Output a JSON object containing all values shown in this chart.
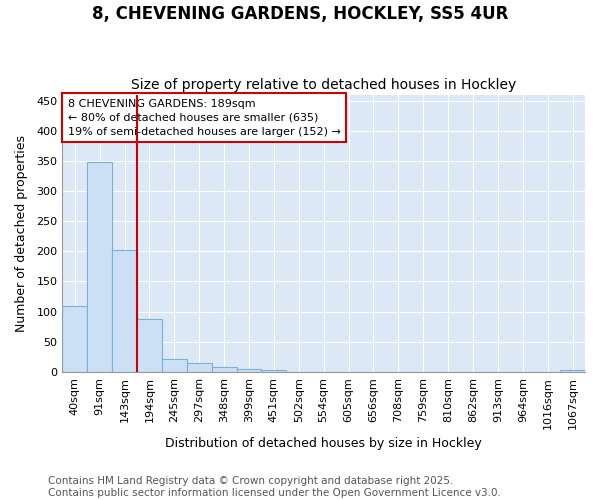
{
  "title_line1": "8, CHEVENING GARDENS, HOCKLEY, SS5 4UR",
  "title_line2": "Size of property relative to detached houses in Hockley",
  "xlabel": "Distribution of detached houses by size in Hockley",
  "ylabel": "Number of detached properties",
  "categories": [
    "40sqm",
    "91sqm",
    "143sqm",
    "194sqm",
    "245sqm",
    "297sqm",
    "348sqm",
    "399sqm",
    "451sqm",
    "502sqm",
    "554sqm",
    "605sqm",
    "656sqm",
    "708sqm",
    "759sqm",
    "810sqm",
    "862sqm",
    "913sqm",
    "964sqm",
    "1016sqm",
    "1067sqm"
  ],
  "values": [
    109,
    348,
    202,
    88,
    22,
    15,
    8,
    5,
    3,
    0,
    0,
    0,
    0,
    0,
    0,
    0,
    0,
    0,
    0,
    0,
    3
  ],
  "bar_color": "#cce0f5",
  "bar_edge_color": "#7ab0d4",
  "marker_color": "#cc0000",
  "annotation_line1": "8 CHEVENING GARDENS: 189sqm",
  "annotation_line2": "← 80% of detached houses are smaller (635)",
  "annotation_line3": "19% of semi-detached houses are larger (152) →",
  "annotation_box_color": "#cc0000",
  "ylim": [
    0,
    460
  ],
  "yticks": [
    0,
    50,
    100,
    150,
    200,
    250,
    300,
    350,
    400,
    450
  ],
  "fig_bg_color": "#ffffff",
  "plot_bg_color": "#dce8f5",
  "grid_color": "#ffffff",
  "title_fontsize": 12,
  "subtitle_fontsize": 10,
  "axis_label_fontsize": 9,
  "tick_fontsize": 8,
  "annotation_fontsize": 8,
  "footer_fontsize": 7.5,
  "footer_line1": "Contains HM Land Registry data © Crown copyright and database right 2025.",
  "footer_line2": "Contains public sector information licensed under the Open Government Licence v3.0."
}
